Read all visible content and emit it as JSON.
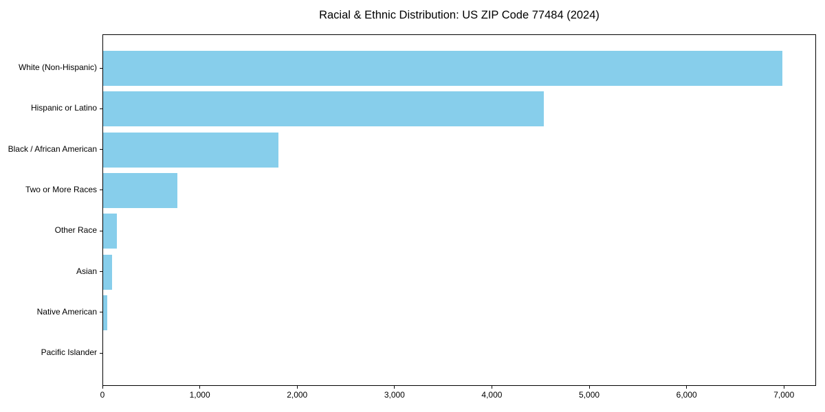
{
  "chart_data": {
    "type": "bar",
    "orientation": "horizontal",
    "title": "Racial & Ethnic Distribution: US ZIP Code 77484 (2024)",
    "categories": [
      "White (Non-Hispanic)",
      "Hispanic or Latino",
      "Black / African American",
      "Two or More Races",
      "Other Race",
      "Asian",
      "Native American",
      "Pacific Islander"
    ],
    "values": [
      6980,
      4530,
      1800,
      760,
      140,
      90,
      45,
      0
    ],
    "xlabel": "",
    "ylabel": "",
    "xlim": [
      0,
      7330
    ],
    "x_ticks": [
      0,
      1000,
      2000,
      3000,
      4000,
      5000,
      6000,
      7000
    ],
    "x_tick_labels": [
      "0",
      "1,000",
      "2,000",
      "3,000",
      "4,000",
      "5,000",
      "6,000",
      "7,000"
    ],
    "bar_color": "#87CEEB",
    "grid": false,
    "legend": "none",
    "background_color": "#ffffff"
  }
}
